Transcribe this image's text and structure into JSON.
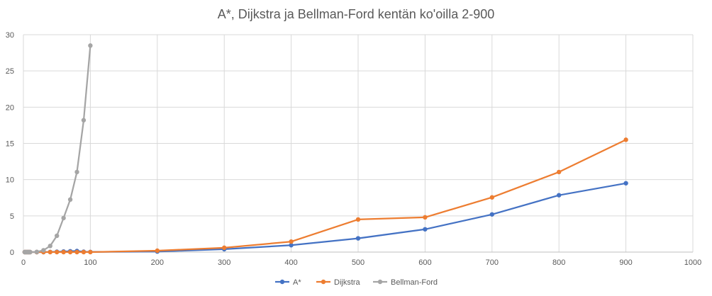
{
  "chart_data": {
    "type": "line",
    "title": "A*, Dijkstra ja Bellman-Ford kentän ko'oilla 2-900",
    "xlabel": "",
    "ylabel": "",
    "xlim": [
      0,
      1000
    ],
    "ylim": [
      0,
      30
    ],
    "x_ticks": [
      0,
      100,
      200,
      300,
      400,
      500,
      600,
      700,
      800,
      900,
      1000
    ],
    "y_ticks": [
      0,
      5,
      10,
      15,
      20,
      25,
      30
    ],
    "grid": true,
    "legend_position": "bottom",
    "series": [
      {
        "name": "A*",
        "color": "#4472C4",
        "x": [
          2,
          4,
          6,
          8,
          10,
          20,
          30,
          40,
          50,
          60,
          70,
          80,
          90,
          100,
          200,
          300,
          400,
          500,
          600,
          700,
          800,
          900
        ],
        "y": [
          0,
          0,
          0,
          0,
          0,
          0,
          0,
          0.02,
          0.05,
          0.08,
          0.12,
          0.15,
          0.05,
          0.02,
          0.08,
          0.4,
          0.95,
          1.9,
          3.15,
          5.2,
          7.85,
          9.5
        ]
      },
      {
        "name": "Dijkstra",
        "color": "#ED7D31",
        "x": [
          2,
          4,
          6,
          8,
          10,
          20,
          30,
          40,
          50,
          60,
          70,
          80,
          90,
          100,
          200,
          300,
          400,
          500,
          600,
          700,
          800,
          900
        ],
        "y": [
          0,
          0,
          0,
          0,
          0,
          0,
          0,
          0,
          0,
          0,
          0,
          0,
          0,
          0,
          0.2,
          0.6,
          1.45,
          4.5,
          4.8,
          7.55,
          11.05,
          15.5
        ]
      },
      {
        "name": "Bellman-Ford",
        "color": "#A5A5A5",
        "x": [
          2,
          4,
          6,
          8,
          10,
          20,
          30,
          40,
          50,
          60,
          70,
          80,
          90,
          100
        ],
        "y": [
          0,
          0,
          0,
          0,
          0,
          0.03,
          0.25,
          0.85,
          2.25,
          4.7,
          7.25,
          11.05,
          18.2,
          28.5
        ]
      }
    ]
  }
}
